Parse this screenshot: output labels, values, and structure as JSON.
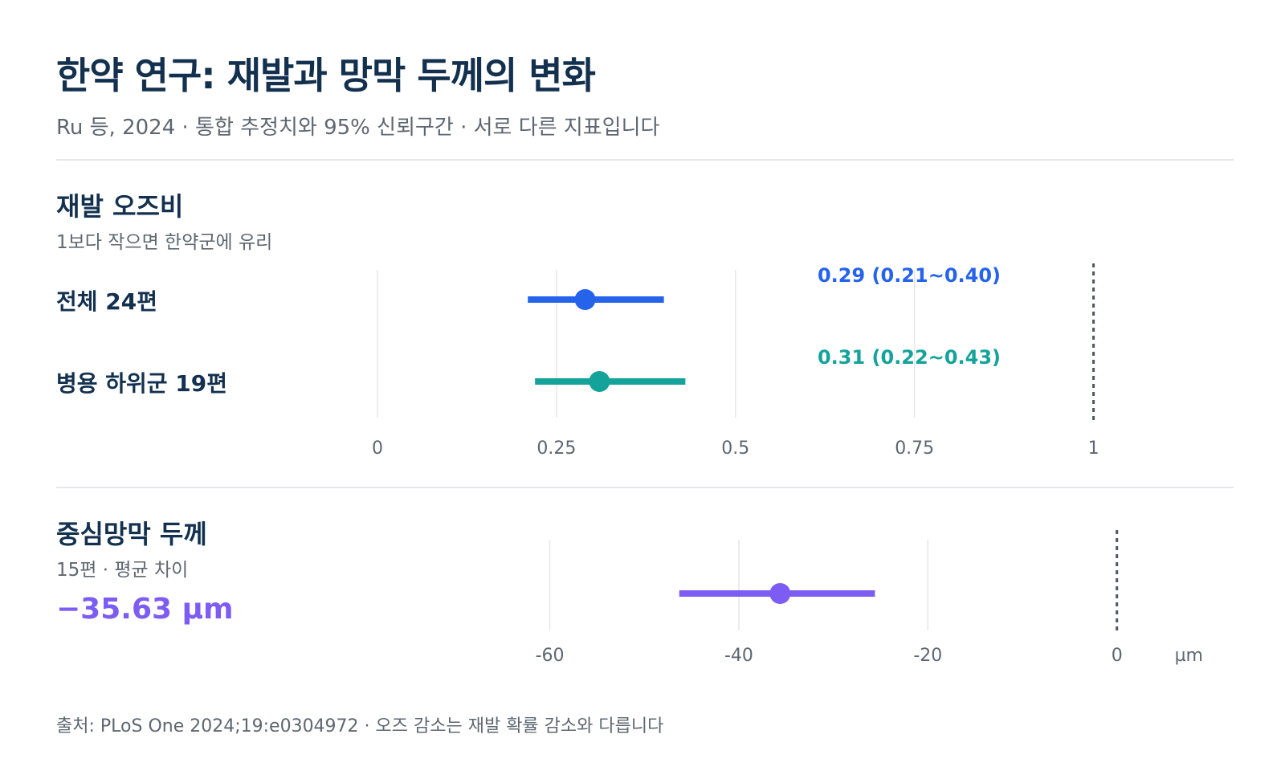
{
  "title": "한약 연구: 재발과 망막 두께의 변화",
  "subtitle": "Ru 등, 2024 · 통합 추정치와 95% 신뢰구간 · 서로 다른 지표입니다",
  "footer": "출처: PLoS One 2024;19:e0304972 · 오즈 감소는 재발 확률 감소와 다릅니다",
  "colors": {
    "blue": "#2563eb",
    "teal": "#14a39a",
    "purple": "#7c5cf2",
    "navy": "#13314f",
    "grid": "#e5e7eb",
    "ref": "#4b5563"
  },
  "chart_data": [
    {
      "type": "forest",
      "title": "재발 오즈비",
      "subtitle": "1보다 작으면 한약군에 유리",
      "xlim": [
        0,
        1.07
      ],
      "ticks": [
        0,
        0.25,
        0.5,
        0.75,
        1
      ],
      "tick_labels": [
        "0",
        "0.25",
        "0.5",
        "0.75",
        "1"
      ],
      "reference": 1,
      "rows": [
        {
          "label": "전체 24편",
          "estimate": 0.29,
          "lower": 0.21,
          "upper": 0.4,
          "ci_label": "0.29 (0.21~0.40)",
          "color": "#2563eb"
        },
        {
          "label": "병용 하위군 19편",
          "estimate": 0.31,
          "lower": 0.22,
          "upper": 0.43,
          "ci_label": "0.31 (0.22~0.43)",
          "color": "#14a39a"
        }
      ]
    },
    {
      "type": "forest",
      "title": "중심망막 두께",
      "subtitle": "15편 · 평균 차이",
      "value_label": "−35.63 µm",
      "unit": "µm",
      "xlim": [
        -75,
        3
      ],
      "ticks": [
        -60,
        -40,
        -20,
        0
      ],
      "tick_labels": [
        "-60",
        "-40",
        "-20",
        "0"
      ],
      "reference": 0,
      "rows": [
        {
          "estimate": -35.63,
          "lower": -46.3,
          "upper": -25.6,
          "color": "#7c5cf2"
        }
      ]
    }
  ]
}
